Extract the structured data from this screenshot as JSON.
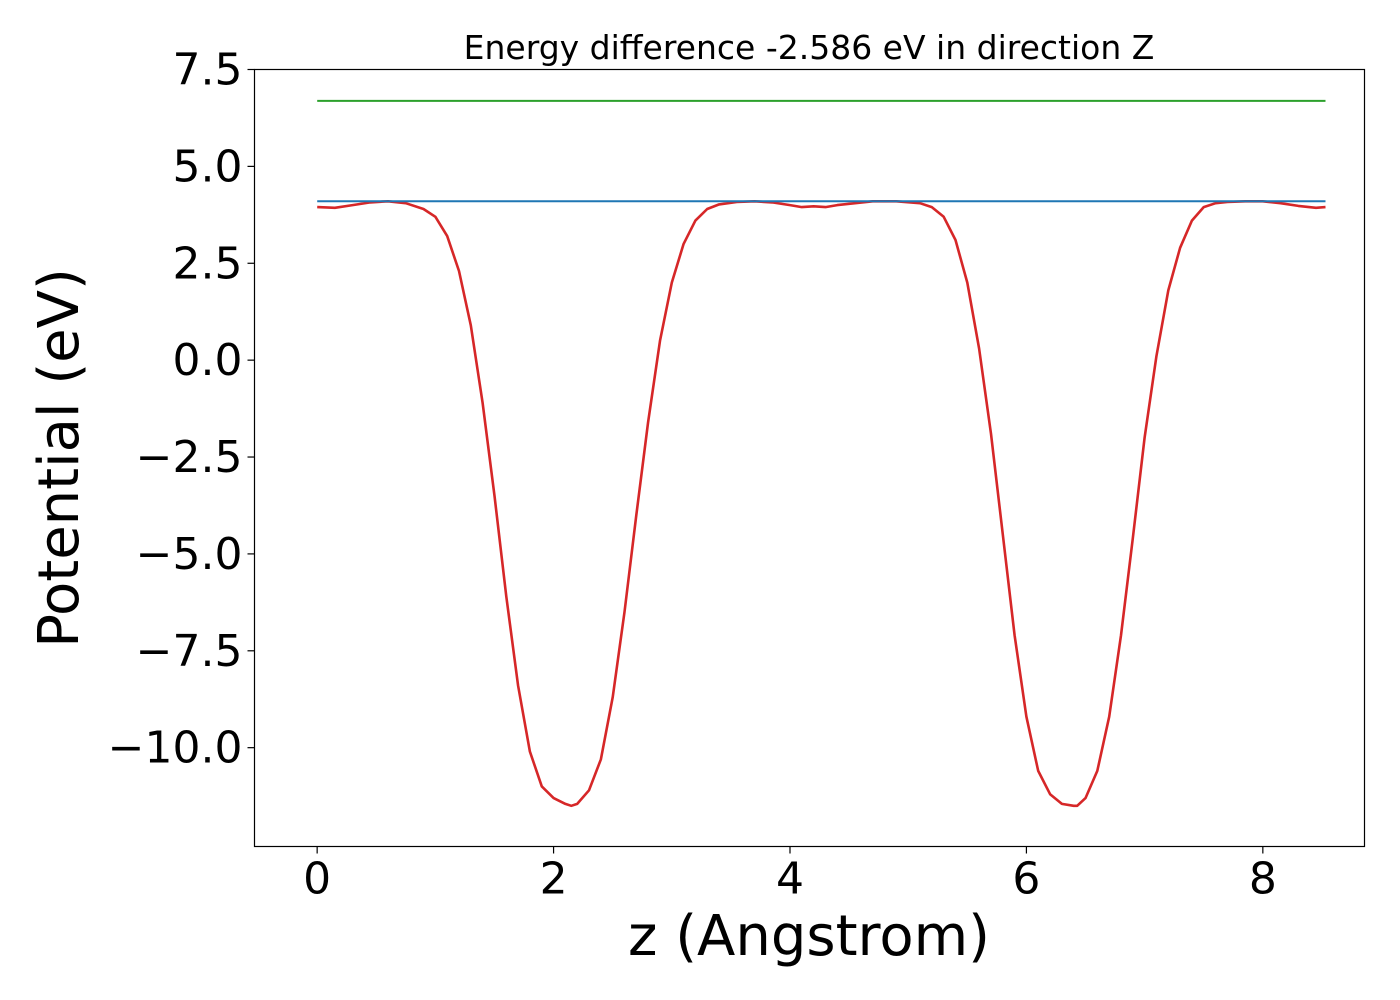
{
  "chart_data": {
    "type": "line",
    "title": "Energy difference -2.586 eV in direction Z",
    "xlabel": "z (Angstrom)",
    "ylabel": "Potential (eV)",
    "xlim": [
      -0.53,
      8.86
    ],
    "ylim": [
      -12.55,
      7.5
    ],
    "x_ticks": [
      0,
      2,
      4,
      6,
      8
    ],
    "x_tick_labels": [
      "0",
      "2",
      "4",
      "6",
      "8"
    ],
    "y_ticks": [
      7.5,
      5.0,
      2.5,
      0.0,
      -2.5,
      -5.0,
      -7.5,
      -10.0
    ],
    "y_tick_labels": [
      "7.5",
      "5.0",
      "2.5",
      "0.0",
      "−2.5",
      "−5.0",
      "−7.5",
      "−10.0"
    ],
    "grid": false,
    "legend": "none",
    "series": [
      {
        "color": "#d62728",
        "x": [
          0.0,
          0.15,
          0.3,
          0.45,
          0.6,
          0.75,
          0.9,
          1.0,
          1.1,
          1.2,
          1.3,
          1.4,
          1.5,
          1.6,
          1.7,
          1.8,
          1.9,
          2.0,
          2.1,
          2.15,
          2.2,
          2.3,
          2.4,
          2.5,
          2.6,
          2.7,
          2.8,
          2.9,
          3.0,
          3.1,
          3.2,
          3.3,
          3.4,
          3.55,
          3.7,
          3.85,
          4.0,
          4.1,
          4.2,
          4.3,
          4.4,
          4.55,
          4.7,
          4.9,
          5.1,
          5.2,
          5.3,
          5.4,
          5.5,
          5.6,
          5.7,
          5.8,
          5.9,
          6.0,
          6.1,
          6.2,
          6.3,
          6.4,
          6.43,
          6.5,
          6.6,
          6.7,
          6.8,
          6.9,
          7.0,
          7.1,
          7.2,
          7.3,
          7.4,
          7.5,
          7.6,
          7.7,
          7.85,
          8.0,
          8.15,
          8.3,
          8.45,
          8.53
        ],
        "y": [
          3.95,
          3.93,
          4.0,
          4.07,
          4.1,
          4.05,
          3.9,
          3.7,
          3.2,
          2.3,
          0.9,
          -1.1,
          -3.5,
          -6.1,
          -8.4,
          -10.1,
          -11.0,
          -11.3,
          -11.45,
          -11.5,
          -11.45,
          -11.1,
          -10.3,
          -8.7,
          -6.5,
          -4.0,
          -1.6,
          0.5,
          2.0,
          3.0,
          3.6,
          3.9,
          4.02,
          4.08,
          4.1,
          4.07,
          4.0,
          3.95,
          3.97,
          3.95,
          4.0,
          4.05,
          4.1,
          4.1,
          4.05,
          3.95,
          3.7,
          3.1,
          2.0,
          0.3,
          -1.9,
          -4.5,
          -7.1,
          -9.2,
          -10.6,
          -11.2,
          -11.45,
          -11.5,
          -11.5,
          -11.3,
          -10.6,
          -9.2,
          -7.1,
          -4.6,
          -2.0,
          0.1,
          1.8,
          2.9,
          3.6,
          3.95,
          4.05,
          4.08,
          4.1,
          4.1,
          4.05,
          3.98,
          3.93,
          3.95
        ]
      },
      {
        "color": "#1f77b4",
        "x": [
          0.0,
          8.53
        ],
        "y": [
          4.1,
          4.1
        ]
      },
      {
        "color": "#2ca02c",
        "x": [
          0.0,
          8.53
        ],
        "y": [
          6.69,
          6.69
        ]
      }
    ]
  }
}
